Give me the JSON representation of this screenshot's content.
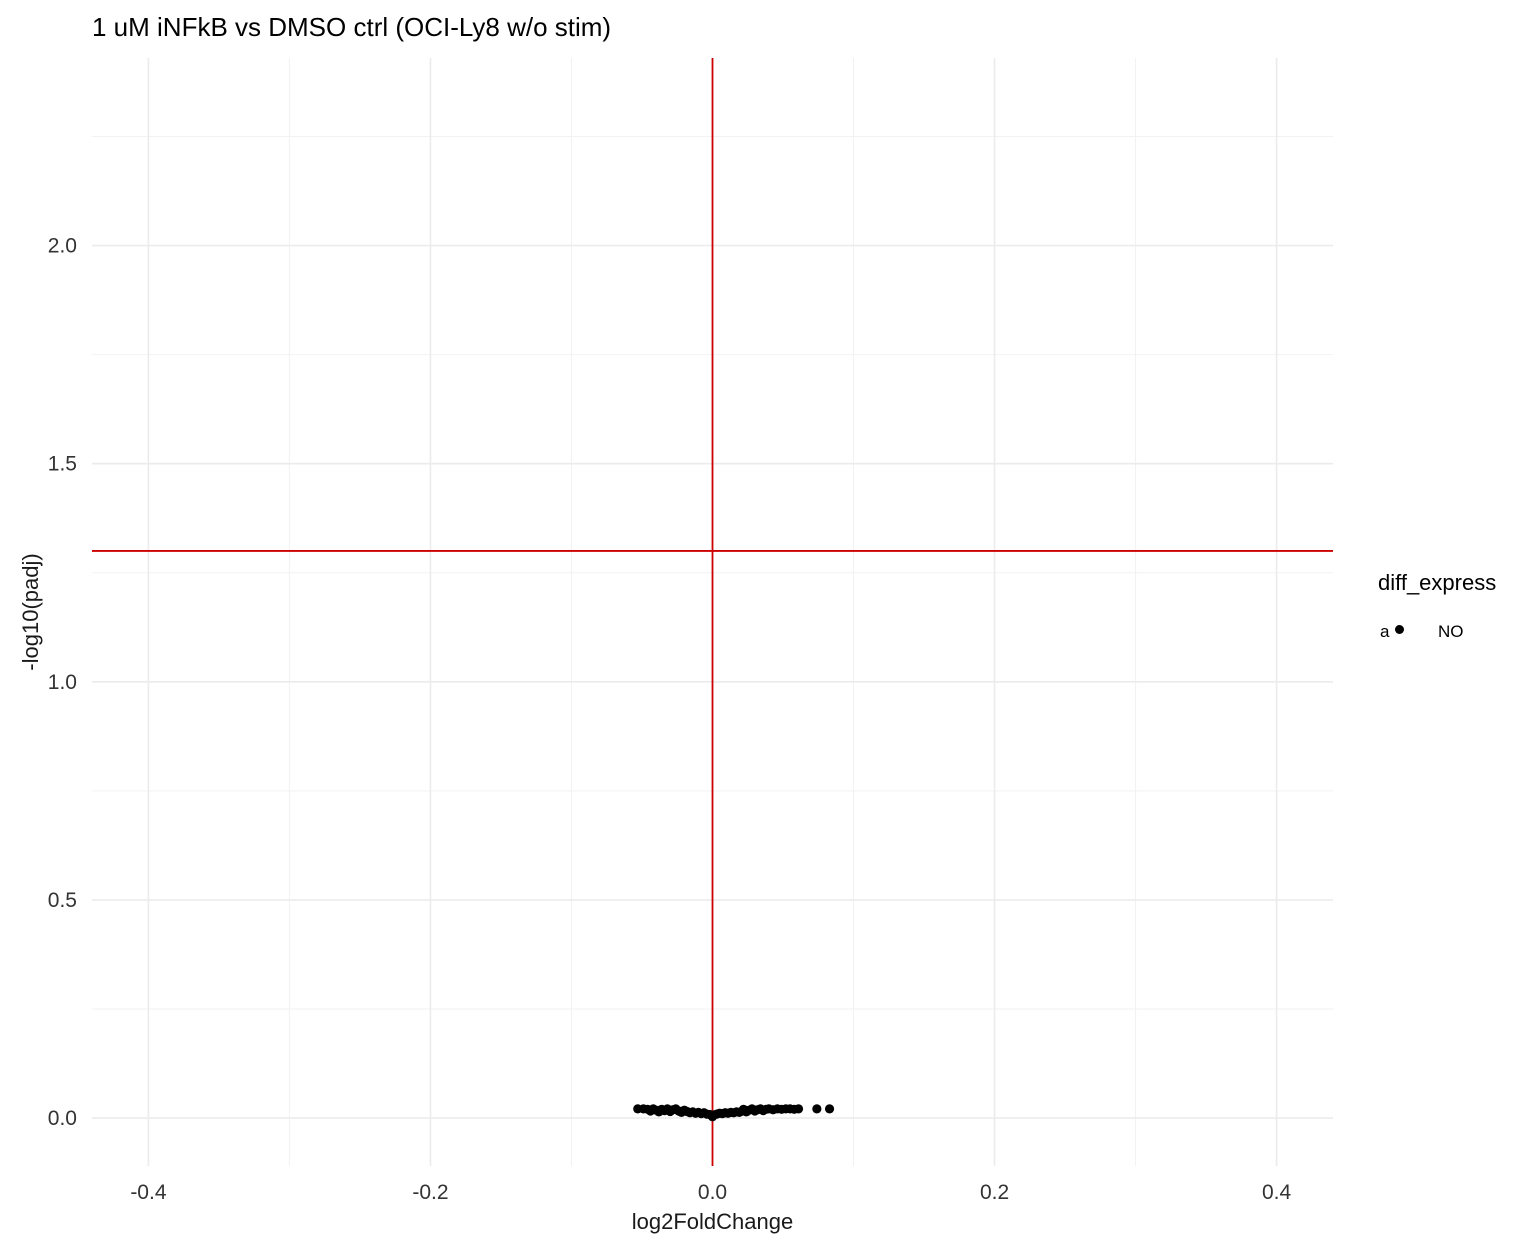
{
  "chart_data": {
    "type": "scatter",
    "title": "1 uM iNFkB vs DMSO ctrl (OCI-Ly8 w/o stim)",
    "xlabel": "log2FoldChange",
    "ylabel": "-log10(padj)",
    "xlim": [
      -0.44,
      0.44
    ],
    "ylim": [
      -0.11,
      2.43
    ],
    "x_ticks": [
      -0.4,
      -0.2,
      0.0,
      0.2,
      0.4
    ],
    "x_tick_labels": [
      "-0.4",
      "-0.2",
      "0.0",
      "0.2",
      "0.4"
    ],
    "y_ticks": [
      0.0,
      0.5,
      1.0,
      1.5,
      2.0
    ],
    "y_tick_labels": [
      "0.0",
      "0.5",
      "1.0",
      "1.5",
      "2.0"
    ],
    "grid": true,
    "reference_lines": [
      {
        "orientation": "vertical",
        "value": 0.0,
        "color": "#cc0000"
      },
      {
        "orientation": "horizontal",
        "value": 1.3,
        "color": "#cc0000"
      }
    ],
    "legend": {
      "title": "diff_express",
      "placement": "right",
      "entries": [
        {
          "key": "a",
          "label": "NO",
          "color": "#000000"
        }
      ]
    },
    "series": [
      {
        "name": "NO",
        "color": "#000000",
        "points": [
          [
            -0.053,
            0.021
          ],
          [
            -0.049,
            0.021
          ],
          [
            -0.046,
            0.02
          ],
          [
            -0.044,
            0.016
          ],
          [
            -0.042,
            0.021
          ],
          [
            -0.04,
            0.018
          ],
          [
            -0.038,
            0.014
          ],
          [
            -0.036,
            0.02
          ],
          [
            -0.034,
            0.017
          ],
          [
            -0.032,
            0.021
          ],
          [
            -0.03,
            0.015
          ],
          [
            -0.028,
            0.019
          ],
          [
            -0.026,
            0.021
          ],
          [
            -0.024,
            0.016
          ],
          [
            -0.022,
            0.013
          ],
          [
            -0.02,
            0.018
          ],
          [
            -0.018,
            0.015
          ],
          [
            -0.016,
            0.012
          ],
          [
            -0.014,
            0.014
          ],
          [
            -0.012,
            0.011
          ],
          [
            -0.01,
            0.013
          ],
          [
            -0.008,
            0.01
          ],
          [
            -0.006,
            0.012
          ],
          [
            -0.004,
            0.009
          ],
          [
            -0.002,
            0.008
          ],
          [
            0.0,
            0.003
          ],
          [
            0.001,
            0.007
          ],
          [
            0.003,
            0.009
          ],
          [
            0.005,
            0.011
          ],
          [
            0.007,
            0.01
          ],
          [
            0.009,
            0.012
          ],
          [
            0.011,
            0.011
          ],
          [
            0.013,
            0.013
          ],
          [
            0.015,
            0.012
          ],
          [
            0.017,
            0.014
          ],
          [
            0.019,
            0.013
          ],
          [
            0.021,
            0.016
          ],
          [
            0.022,
            0.02
          ],
          [
            0.024,
            0.014
          ],
          [
            0.026,
            0.018
          ],
          [
            0.028,
            0.021
          ],
          [
            0.03,
            0.016
          ],
          [
            0.032,
            0.019
          ],
          [
            0.034,
            0.021
          ],
          [
            0.036,
            0.017
          ],
          [
            0.038,
            0.02
          ],
          [
            0.04,
            0.021
          ],
          [
            0.043,
            0.019
          ],
          [
            0.046,
            0.021
          ],
          [
            0.049,
            0.02
          ],
          [
            0.052,
            0.021
          ],
          [
            0.055,
            0.021
          ],
          [
            0.058,
            0.02
          ],
          [
            0.061,
            0.021
          ],
          [
            0.074,
            0.021
          ],
          [
            0.083,
            0.021
          ]
        ]
      }
    ]
  }
}
